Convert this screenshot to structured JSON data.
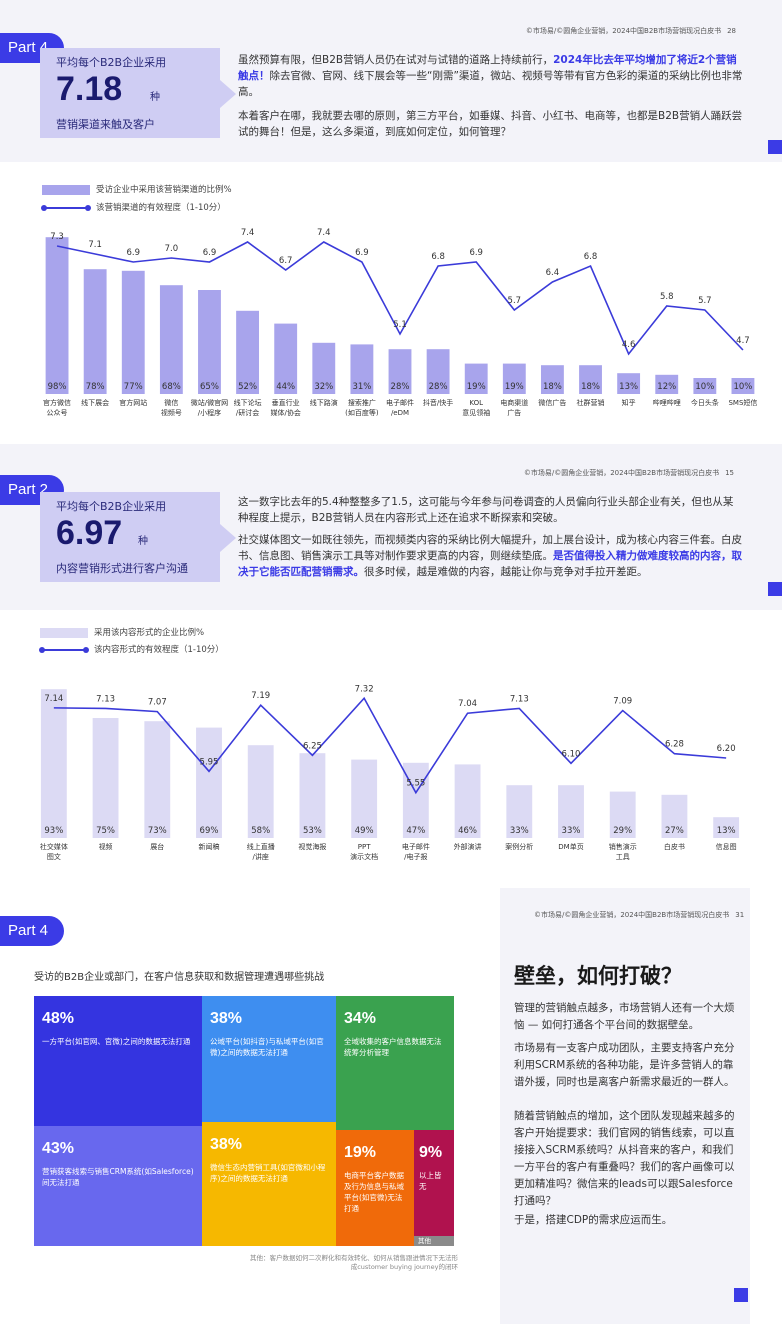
{
  "section1": {
    "source": "©市场易/©圆角企业营销，2024中国B2B市场营销现况白皮书",
    "page": "28",
    "part": "Part 4",
    "stat_top": "平均每个B2B企业采用",
    "stat_value": "7.18",
    "stat_unit": "种",
    "stat_bottom": "营销渠道来触及客户",
    "para1_a": "虽然预算有限，但B2B营销人员仍在试对与试错的道路上持续前行，",
    "para1_b": "2024年比去年平均增加了将近2个营销触点！",
    "para1_c": "除去官微、官网、线下展会等一些“刚需”渠道，微站、视频号等带有官方色彩的渠道的采纳比例也非常高。",
    "para2": "本着客户在哪，我就要去哪的原则，第三方平台，如垂媒、抖音、小红书、电商等，也都是B2B营销人踊跃尝试的舞台！但是，这么多渠道，到底如何定位，如何管理？"
  },
  "section2": {
    "source": "©市场易/©圆角企业营销，2024中国B2B市场营销现况白皮书",
    "page": "15",
    "part": "Part 2",
    "stat_top": "平均每个B2B企业采用",
    "stat_value": "6.97",
    "stat_unit": "种",
    "stat_bottom": "内容营销形式进行客户沟通",
    "para1": "这一数字比去年的5.4种整整多了1.5，这可能与今年参与问卷调查的人员偏向行业头部企业有关，但也从某种程度上提示，B2B营销人员在内容形式上还在追求不断探索和突破。",
    "para2_a": "社交媒体图文一如既往领先，而视频类内容的采纳比例大幅提升，加上展台设计，成为核心内容三件套。白皮书、信息图、销售演示工具等对制作要求更高的内容，则继续垫底。",
    "para2_b": "是否值得投入精力做难度较高的内容，取决于它能否匹配营销需求。",
    "para2_c": "很多时候，越是难做的内容，越能让你与竞争对手拉开差距。"
  },
  "section3": {
    "source": "©市场易/©圆角企业营销，2024中国B2B市场营销现况白皮书",
    "page": "31",
    "part": "Part 4",
    "tm_title": "受访的B2B企业或部门，在客户信息获取和数据管理遭遇哪些挑战",
    "cells": [
      {
        "pct": "48%",
        "text": "一方平台(如官网、官微)之间的数据无法打通",
        "color": "#3434e0"
      },
      {
        "pct": "38%",
        "text": "公域平台(如抖音)与私域平台(如官微)之间的数据无法打通",
        "color": "#3e8ef0"
      },
      {
        "pct": "34%",
        "text": "全域收集的客户信息数据无法统筹分析管理",
        "color": "#3aa24f"
      },
      {
        "pct": "43%",
        "text": "营销获客线索与销售CRM系统(如Salesforce)间无法打通",
        "color": "#6868ee"
      },
      {
        "pct": "38%",
        "text": "微信生态内营销工具(如官微和小程序)之间的数据无法打通",
        "color": "#f6b800"
      },
      {
        "pct": "19%",
        "text": "电商平台客户数据及行为信息与私域平台(如官微)无法打通",
        "color": "#f06a0a"
      },
      {
        "pct": "9%",
        "text": "以上皆无",
        "color": "#b0124e"
      },
      {
        "pct": "",
        "text": "其他",
        "color": "#8a8a8a"
      }
    ],
    "tm_note": "其他：客户数据如何二次孵化和有效转化、如何从销售跟进情况下无法形成customer buying journey的闭环",
    "right_title": "壁垒，如何打破？",
    "right_p1": "管理的营销触点越多，市场营销人还有一个大烦恼 — 如何打通各个平台间的数据壁垒。",
    "right_p2": "市场易有一支客户成功团队，主要支持客户充分利用SCRM系统的各种功能，是许多营销人的靠谱外援，同时也是离客户新需求最近的一群人。",
    "right_p3": "随着营销触点的增加，这个团队发现越来越多的客户开始提要求：我们官网的销售线索，可以直接接入SCRM系统吗？从抖音来的客户，和我们一方平台的客户有重叠吗？我们的客户画像可以更加精准吗？微信来的leads可以跟Salesforce打通吗？",
    "right_p4": "于是，搭建CDP的需求应运而生。"
  },
  "chart_data": [
    {
      "type": "bar",
      "title": "",
      "legend": [
        "受访企业中采用该营销渠道的比例%",
        "该营销渠道的有效程度（1-10分）"
      ],
      "legend_position": "top-left",
      "bar_color": "#a8a4ec",
      "line_color": "#3b3bd9",
      "categories": [
        "官方微信\n公众号",
        "线下展会",
        "官方网站",
        "微信\n视频号",
        "微站/微官网\n/小程序",
        "线下论坛\n/研讨会",
        "垂直行业\n媒体/协会",
        "线下路演",
        "搜索推广\n(如百度等)",
        "电子邮件\n/eDM",
        "抖音/快手",
        "KOL\n意见领袖",
        "电商渠道\n广告",
        "微信广告",
        "社群营销",
        "知乎",
        "哔哩哔哩",
        "今日头条",
        "SMS短信"
      ],
      "series": [
        {
          "name": "受访企业中采用该营销渠道的比例%",
          "kind": "bar",
          "values": [
            98,
            78,
            77,
            68,
            65,
            52,
            44,
            32,
            31,
            28,
            28,
            19,
            19,
            18,
            18,
            13,
            12,
            10,
            10
          ],
          "labels": [
            "98%",
            "78%",
            "77%",
            "68%",
            "65%",
            "52%",
            "44%",
            "32%",
            "31%",
            "28%",
            "28%",
            "19%",
            "19%",
            "18%",
            "18%",
            "13%",
            "12%",
            "10%",
            "10%"
          ]
        },
        {
          "name": "该营销渠道的有效程度（1-10分）",
          "kind": "line",
          "values": [
            7.3,
            7.1,
            6.9,
            7.0,
            6.9,
            7.4,
            6.7,
            7.4,
            6.9,
            5.1,
            6.8,
            6.9,
            5.7,
            6.4,
            6.8,
            4.6,
            5.8,
            5.7,
            4.7
          ],
          "labels": [
            "7.3",
            "7.1",
            "6.9",
            "7.0",
            "6.9",
            "7.4",
            "6.7",
            "7.4",
            "6.9",
            "5.1",
            "6.8",
            "6.9",
            "5.7",
            "6.4",
            "6.8",
            "4.6",
            "5.8",
            "5.7",
            "4.7"
          ]
        }
      ],
      "ylim_bar": [
        0,
        100
      ],
      "ylim_line": [
        4,
        8
      ],
      "grid": false
    },
    {
      "type": "bar",
      "title": "",
      "legend": [
        "采用该内容形式的企业比例%",
        "该内容形式的有效程度（1-10分）"
      ],
      "legend_position": "top-left",
      "bar_color": "#dcdaf4",
      "line_color": "#3b3bd9",
      "categories": [
        "社交媒体\n图文",
        "视频",
        "展台",
        "新闻稿",
        "线上直播\n/讲座",
        "视觉海报",
        "PPT\n演示文档",
        "电子邮件\n/电子报",
        "外部演讲",
        "案例分析",
        "DM单页",
        "销售演示\n工具",
        "白皮书",
        "信息图"
      ],
      "series": [
        {
          "name": "采用该内容形式的企业比例%",
          "kind": "bar",
          "values": [
            93,
            75,
            73,
            69,
            58,
            53,
            49,
            47,
            46,
            33,
            33,
            29,
            27,
            13
          ],
          "labels": [
            "93%",
            "75%",
            "73%",
            "69%",
            "58%",
            "53%",
            "49%",
            "47%",
            "46%",
            "33%",
            "33%",
            "29%",
            "27%",
            "13%"
          ]
        },
        {
          "name": "该内容形式的有效程度（1-10分）",
          "kind": "line",
          "values": [
            7.14,
            7.13,
            7.07,
            5.95,
            7.19,
            6.25,
            7.32,
            5.55,
            7.04,
            7.13,
            6.1,
            7.09,
            6.28,
            6.2
          ],
          "labels": [
            "7.14",
            "7.13",
            "7.07",
            "5.95",
            "7.19",
            "6.25",
            "7.32",
            "5.55",
            "7.04",
            "7.13",
            "6.10",
            "7.09",
            "6.28",
            "6.20"
          ]
        }
      ],
      "ylim_bar": [
        0,
        100
      ],
      "ylim_line": [
        5,
        8
      ],
      "grid": false
    },
    {
      "type": "heatmap",
      "subtype": "treemap",
      "title": "受访的B2B企业或部门，在客户信息获取和数据管理遭遇哪些挑战",
      "categories": [
        "一方平台(如官网、官微)之间的数据无法打通",
        "公域平台(如抖音)与私域平台(如官微)之间的数据无法打通",
        "全域收集的客户信息数据无法统筹分析管理",
        "营销获客线索与销售CRM系统(如Salesforce)间无法打通",
        "微信生态内营销工具(如官微和小程序)之间的数据无法打通",
        "电商平台客户数据及行为信息与私域平台(如官微)无法打通",
        "以上皆无",
        "其他"
      ],
      "values": [
        48,
        38,
        34,
        43,
        38,
        19,
        9,
        null
      ]
    }
  ]
}
